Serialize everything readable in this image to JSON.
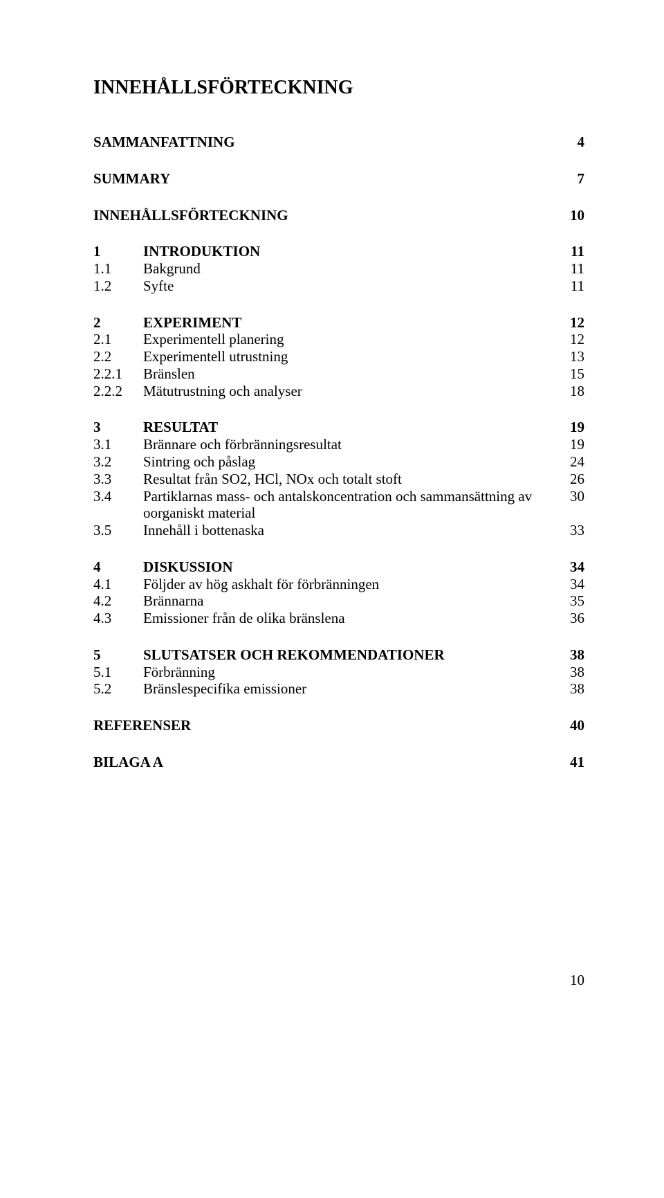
{
  "title": "INNEHÅLLSFÖRTECKNING",
  "groups": [
    [
      {
        "num": "",
        "label": "SAMMANFATTNING",
        "page": "4",
        "bold": true,
        "standalone": true
      }
    ],
    [
      {
        "num": "",
        "label": "SUMMARY",
        "page": "7",
        "bold": true,
        "standalone": true
      }
    ],
    [
      {
        "num": "",
        "label": "INNEHÅLLSFÖRTECKNING",
        "page": "10",
        "bold": true,
        "standalone": true
      }
    ],
    [
      {
        "num": "1",
        "label": "INTRODUKTION",
        "page": "11",
        "bold": true
      },
      {
        "num": "1.1",
        "label": "Bakgrund",
        "page": "11"
      },
      {
        "num": "1.2",
        "label": "Syfte",
        "page": "11"
      }
    ],
    [
      {
        "num": "2",
        "label": "EXPERIMENT",
        "page": "12",
        "bold": true
      },
      {
        "num": "2.1",
        "label": "Experimentell planering",
        "page": "12"
      },
      {
        "num": "2.2",
        "label": "Experimentell utrustning",
        "page": "13"
      },
      {
        "num": "2.2.1",
        "label": "Bränslen",
        "page": "15"
      },
      {
        "num": "2.2.2",
        "label": "Mätutrustning och analyser",
        "page": "18"
      }
    ],
    [
      {
        "num": "3",
        "label": "RESULTAT",
        "page": "19",
        "bold": true
      },
      {
        "num": "3.1",
        "label": "Brännare och förbränningsresultat",
        "page": "19"
      },
      {
        "num": "3.2",
        "label": "Sintring och påslag",
        "page": "24"
      },
      {
        "num": "3.3",
        "label": "Resultat från SO2, HCl, NOx och totalt stoft",
        "page": "26"
      },
      {
        "num": "3.4",
        "label": "Partiklarnas mass- och antalskoncentration och sammansättning av oorganiskt material",
        "page": "30"
      },
      {
        "num": "3.5",
        "label": "Innehåll i bottenaska",
        "page": "33"
      }
    ],
    [
      {
        "num": "4",
        "label": "DISKUSSION",
        "page": "34",
        "bold": true
      },
      {
        "num": "4.1",
        "label": "Följder av hög askhalt för förbränningen",
        "page": "34"
      },
      {
        "num": "4.2",
        "label": "Brännarna",
        "page": "35"
      },
      {
        "num": "4.3",
        "label": "Emissioner från de olika bränslena",
        "page": "36"
      }
    ],
    [
      {
        "num": "5",
        "label": "SLUTSATSER OCH REKOMMENDATIONER",
        "page": "38",
        "bold": true
      },
      {
        "num": "5.1",
        "label": "Förbränning",
        "page": "38"
      },
      {
        "num": "5.2",
        "label": "Bränslespecifika emissioner",
        "page": "38"
      }
    ],
    [
      {
        "num": "",
        "label": "REFERENSER",
        "page": "40",
        "bold": true,
        "standalone": true
      }
    ],
    [
      {
        "num": "",
        "label": "BILAGA A",
        "page": "41",
        "bold": true,
        "standalone": true
      }
    ]
  ],
  "footer_page": "10"
}
